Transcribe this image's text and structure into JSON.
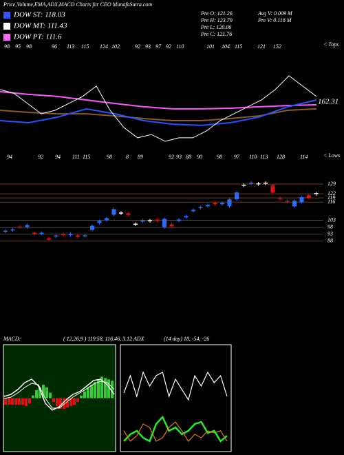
{
  "header": {
    "title": "Price,Volume,EMA,ADX,MACD Charts for CEO MunafaSutra.com",
    "legend": [
      {
        "label": "DOW ST: 118.03",
        "color": "#3355ff"
      },
      {
        "label": "DOW MT: 111.43",
        "color": "#ffffff"
      },
      {
        "label": "DOW PT: 111.6",
        "color": "#ff66ff"
      }
    ],
    "info_left": [
      "Pre   O: 121.26",
      "Pre   H: 123.79",
      "Pre   L: 120.06",
      "Pre   C: 121.76"
    ],
    "info_right": [
      "Avg V: 0.009 M",
      "Pre   V: 0.118 M"
    ]
  },
  "ema_panel": {
    "tops": [
      98,
      95,
      98,
      96,
      113,
      115,
      124,
      102,
      92,
      93,
      97,
      92,
      110,
      101,
      104,
      115,
      121,
      152
    ],
    "tops_caption": "< Tops",
    "lows": [
      94,
      92,
      94,
      111,
      115,
      98,
      8,
      89,
      92,
      93,
      88,
      90,
      98,
      97,
      110,
      113,
      128,
      114
    ],
    "lows_caption": "< Lows",
    "last_label": "162.31",
    "ylim": [
      85,
      135
    ],
    "series": [
      {
        "color": "#ff55ff",
        "values": [
          114,
          112.7,
          111.7,
          110,
          108.3,
          106.7,
          105.7,
          105.7,
          106,
          106.7,
          107.3,
          107.7
        ]
      },
      {
        "color": "#8b5a2b",
        "values": [
          105,
          104,
          103.3,
          103.3,
          102.3,
          101,
          100,
          100,
          101,
          102.3,
          105,
          105.7
        ]
      },
      {
        "color": "#2255ff",
        "values": [
          100,
          99,
          101.7,
          105.7,
          103.3,
          100,
          98.3,
          97.7,
          99,
          101.7,
          106.7,
          110
        ]
      },
      {
        "color": "#ffffff",
        "values": [
          115,
          113.3,
          108.3,
          103.3,
          105,
          108.3,
          111.7,
          116.7,
          105,
          96.7,
          91.7,
          93.3,
          90,
          91.7,
          91.7,
          95,
          100,
          103.3,
          106.7,
          110,
          115,
          121.7,
          116.7,
          111.7
        ]
      }
    ]
  },
  "candles": {
    "ylim": [
      73,
      137.4
    ],
    "levels": [
      129,
      122,
      116,
      119,
      103,
      98,
      93,
      88
    ],
    "open": [
      95,
      96,
      98.5,
      98,
      94,
      93.5,
      90,
      91.5,
      93,
      92.5,
      92,
      91.5,
      96,
      101,
      103,
      107,
      108.5,
      108,
      100.5,
      102,
      103,
      103.5,
      98,
      100,
      102.5,
      105,
      109.5,
      112,
      113,
      115.5,
      114.5,
      113,
      118,
      128.5,
      129.5,
      129.5,
      130,
      128,
      119,
      117,
      113,
      116,
      121,
      122.5
    ],
    "close": [
      95.5,
      96.4,
      97.8,
      99.5,
      93.3,
      94,
      89,
      92,
      92.5,
      93,
      91,
      92.2,
      99,
      102.5,
      104.5,
      111,
      108.5,
      106.8,
      100.5,
      103,
      103,
      102.5,
      104,
      98.5,
      103.5,
      106,
      110.5,
      112.5,
      114,
      114.5,
      115.5,
      118,
      123,
      128.5,
      130,
      129.5,
      130,
      123,
      118.5,
      116.3,
      117,
      119.5,
      119,
      122.5
    ]
  },
  "macd": {
    "label": "MACD:",
    "params": "( 12,26,9 ) 119.58, 116.46, 3.12 ADX",
    "adx_label": "(14 day) 18, -54, -26",
    "ylim": [
      -40,
      40
    ],
    "histogram": [
      -5,
      -5,
      -5,
      -5,
      -5,
      -5,
      -6,
      -4,
      2,
      6,
      8,
      10,
      8,
      4,
      -3,
      -6,
      -8,
      -8,
      -7,
      -6,
      -5,
      -3,
      2,
      5,
      8,
      10,
      12,
      14,
      16,
      15,
      14,
      13
    ],
    "macd_line": [
      1.3,
      2.8,
      6.5,
      11.6,
      14.2,
      9,
      -3.9,
      -9,
      -6.5,
      -1.3,
      2.8,
      4.9,
      9,
      13.2,
      14.2,
      10,
      2.8
    ],
    "signal_line": [
      -0.3,
      0.8,
      3.9,
      8,
      11.1,
      10,
      -0.3,
      -7.5,
      -7.5,
      -3.4,
      0.8,
      3.9,
      7,
      10.6,
      12.6,
      11.6,
      6.5
    ]
  },
  "adx": {
    "ylim": [
      0,
      100
    ],
    "series": [
      {
        "color": "#ffffff",
        "values": [
          54.8,
          71,
          51.6,
          74.2,
          61.3,
          71,
          74.2,
          51.6,
          67.7,
          58.1,
          48.4,
          71,
          61.3,
          74.2,
          64.5,
          71,
          51.6
        ]
      },
      {
        "color": "#22ee22",
        "values": [
          9.7,
          16.1,
          19.4,
          12.9,
          9.7,
          25.8,
          32.3,
          19.4,
          22.6,
          16.1,
          19.4,
          25.8,
          27.7,
          17.4,
          19.4,
          9.7,
          14.8
        ]
      },
      {
        "color": "#e07a10",
        "values": [
          19.4,
          9.7,
          14.8,
          25.8,
          22.6,
          9.7,
          12.9,
          22.6,
          27.7,
          19.4,
          9.7,
          16.1,
          12.9,
          19.4,
          17.4,
          19.4,
          9.7
        ]
      }
    ]
  }
}
